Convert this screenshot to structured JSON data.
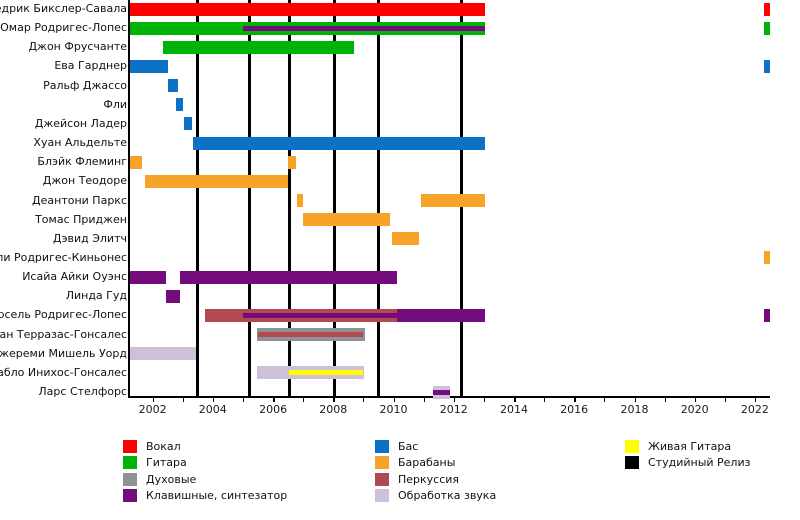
{
  "chart_data": {
    "type": "gantt-timeline",
    "description": "Band members timeline with instrument roles and studio release markers",
    "x_axis": {
      "min": 2001.25,
      "max": 2022.5,
      "labeled_ticks": [
        2002,
        2004,
        2006,
        2008,
        2010,
        2012,
        2014,
        2016,
        2018,
        2020,
        2022
      ],
      "minor_tick_every_year": true,
      "grid": false
    },
    "release_lines": [
      2003.5,
      2005.2,
      2006.55,
      2008.05,
      2009.5,
      2012.25
    ],
    "roles": {
      "vocals": {
        "label": "Вокал",
        "color": "#fe0000"
      },
      "guitar": {
        "label": "Гитара",
        "color": "#00b307"
      },
      "winds": {
        "label": "Духовые",
        "color": "#919191"
      },
      "keys": {
        "label": "Клавишные, синтезатор",
        "color": "#750c7d"
      },
      "bass": {
        "label": "Бас",
        "color": "#0d72c7"
      },
      "drums": {
        "label": "Барабаны",
        "color": "#f7a229"
      },
      "percussion": {
        "label": "Перкуссия",
        "color": "#b04a50"
      },
      "sound": {
        "label": "Обработка звука",
        "color": "#cfc0da"
      },
      "live_guitar": {
        "label": "Живая Гитара",
        "color": "#ffff00"
      },
      "release": {
        "label": "Студийный Релиз",
        "color": "#000000"
      }
    },
    "legend_columns": [
      [
        "vocals",
        "guitar",
        "winds",
        "keys"
      ],
      [
        "bass",
        "drums",
        "percussion",
        "sound"
      ],
      [
        "live_guitar",
        "release"
      ]
    ],
    "members": [
      {
        "name": "Седрик Бикслер-Савала",
        "segments": [
          {
            "from": 2001.25,
            "to": 2013.05,
            "role": "vocals"
          },
          {
            "from": 2022.3,
            "to": 2022.5,
            "role": "vocals"
          }
        ]
      },
      {
        "name": "Омар Родригес-Лопес",
        "segments": [
          {
            "from": 2001.25,
            "to": 2013.05,
            "role": "guitar",
            "stripe": {
              "from": 2005.0,
              "to": 2013.05,
              "role": "keys"
            }
          },
          {
            "from": 2022.3,
            "to": 2022.5,
            "role": "guitar"
          }
        ]
      },
      {
        "name": "Джон Фрусчанте",
        "segments": [
          {
            "from": 2002.35,
            "to": 2008.7,
            "role": "guitar"
          }
        ]
      },
      {
        "name": "Ева Гарднер",
        "segments": [
          {
            "from": 2001.25,
            "to": 2002.5,
            "role": "bass"
          },
          {
            "from": 2022.3,
            "to": 2022.5,
            "role": "bass"
          }
        ]
      },
      {
        "name": "Ральф Джассо",
        "segments": [
          {
            "from": 2002.5,
            "to": 2002.85,
            "role": "bass"
          }
        ]
      },
      {
        "name": "Фли",
        "segments": [
          {
            "from": 2002.78,
            "to": 2003.0,
            "role": "bass"
          }
        ]
      },
      {
        "name": "Джейсон Ладер",
        "segments": [
          {
            "from": 2003.05,
            "to": 2003.32,
            "role": "bass"
          }
        ]
      },
      {
        "name": "Хуан Альдельте",
        "segments": [
          {
            "from": 2003.35,
            "to": 2013.05,
            "role": "bass"
          }
        ]
      },
      {
        "name": "Блэйк Флеминг",
        "segments": [
          {
            "from": 2001.25,
            "to": 2001.65,
            "role": "drums"
          },
          {
            "from": 2006.5,
            "to": 2006.78,
            "role": "drums"
          }
        ]
      },
      {
        "name": "Джон Теодоре",
        "segments": [
          {
            "from": 2001.75,
            "to": 2006.5,
            "role": "drums"
          }
        ]
      },
      {
        "name": "Деантони Паркс",
        "segments": [
          {
            "from": 2006.78,
            "to": 2007.0,
            "role": "drums"
          },
          {
            "from": 2010.9,
            "to": 2013.05,
            "role": "drums"
          }
        ]
      },
      {
        "name": "Томас Приджен",
        "segments": [
          {
            "from": 2007.0,
            "to": 2009.9,
            "role": "drums"
          }
        ]
      },
      {
        "name": "Дэвид Элитч",
        "segments": [
          {
            "from": 2009.95,
            "to": 2010.85,
            "role": "drums"
          }
        ]
      },
      {
        "name": "Вилли Родригес-Киньонес",
        "segments": [
          {
            "from": 2022.3,
            "to": 2022.5,
            "role": "drums"
          }
        ]
      },
      {
        "name": "Исайа Айки Оуэнс",
        "segments": [
          {
            "from": 2001.25,
            "to": 2002.45,
            "role": "keys"
          },
          {
            "from": 2002.9,
            "to": 2010.12,
            "role": "keys"
          }
        ]
      },
      {
        "name": "Линда Гуд",
        "segments": [
          {
            "from": 2002.45,
            "to": 2002.9,
            "role": "keys"
          }
        ]
      },
      {
        "name": "Марсель Родригес-Лопес",
        "segments": [
          {
            "from": 2003.75,
            "to": 2010.12,
            "role": "percussion",
            "stripe": {
              "from": 2005.0,
              "to": 2010.12,
              "role": "keys"
            }
          },
          {
            "from": 2010.12,
            "to": 2013.05,
            "role": "keys"
          },
          {
            "from": 2022.3,
            "to": 2022.5,
            "role": "keys"
          }
        ]
      },
      {
        "name": "Адриан Терразас-Гонсалес",
        "segments": [
          {
            "from": 2005.47,
            "to": 2009.05,
            "role": "winds",
            "stripe": {
              "from": 2005.5,
              "to": 2009.0,
              "role": "percussion"
            }
          }
        ]
      },
      {
        "name": "Джереми Мишель Уорд",
        "segments": [
          {
            "from": 2001.25,
            "to": 2003.45,
            "role": "sound"
          }
        ]
      },
      {
        "name": "Пабло Инихос-Гонсалес",
        "segments": [
          {
            "from": 2005.47,
            "to": 2009.02,
            "role": "sound",
            "stripe": {
              "from": 2006.53,
              "to": 2009.0,
              "role": "live_guitar"
            }
          }
        ]
      },
      {
        "name": "Ларс Стелфорс",
        "segments": [
          {
            "from": 2011.32,
            "to": 2011.88,
            "role": "sound",
            "stripe": {
              "from": 2011.32,
              "to": 2011.88,
              "role": "keys"
            }
          }
        ]
      }
    ]
  },
  "layout_hints": {
    "legend_position": "bottom",
    "row_count": 21
  }
}
